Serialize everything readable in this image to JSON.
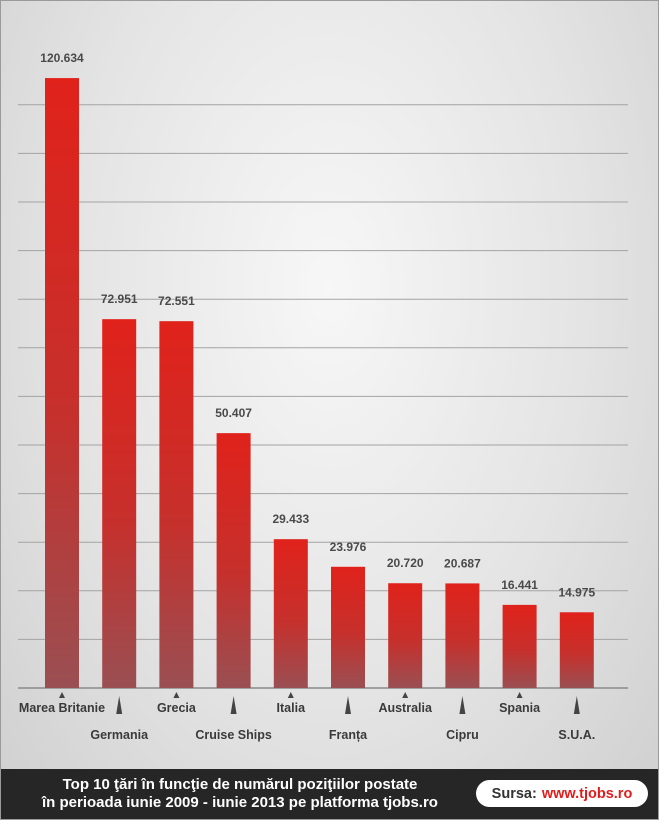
{
  "chart_data": {
    "type": "bar",
    "categories": [
      "Marea Britanie",
      "Germania",
      "Grecia",
      "Cruise Ships",
      "Italia",
      "Franța",
      "Australia",
      "Cipru",
      "Spania",
      "S.U.A."
    ],
    "values": [
      120634,
      72951,
      72551,
      50407,
      29433,
      23976,
      20720,
      20687,
      16441,
      14975
    ],
    "value_labels": [
      "120.634",
      "72.951",
      "72.551",
      "50.407",
      "29.433",
      "23.976",
      "20.720",
      "20.687",
      "16.441",
      "14.975"
    ],
    "ylim": [
      0,
      125000
    ],
    "grid": true,
    "legend": "none",
    "bar_color_top": "#e0221b",
    "bar_color_bottom": "#9a4f53"
  },
  "footer": {
    "title_line1": "Top 10 ţări în funcţie de numărul poziţiilor postate",
    "title_line2": "în perioada iunie 2009 - iunie 2013 pe platforma tjobs.ro",
    "source_label": "Sursa:",
    "source_link": "www.tjobs.ro"
  }
}
